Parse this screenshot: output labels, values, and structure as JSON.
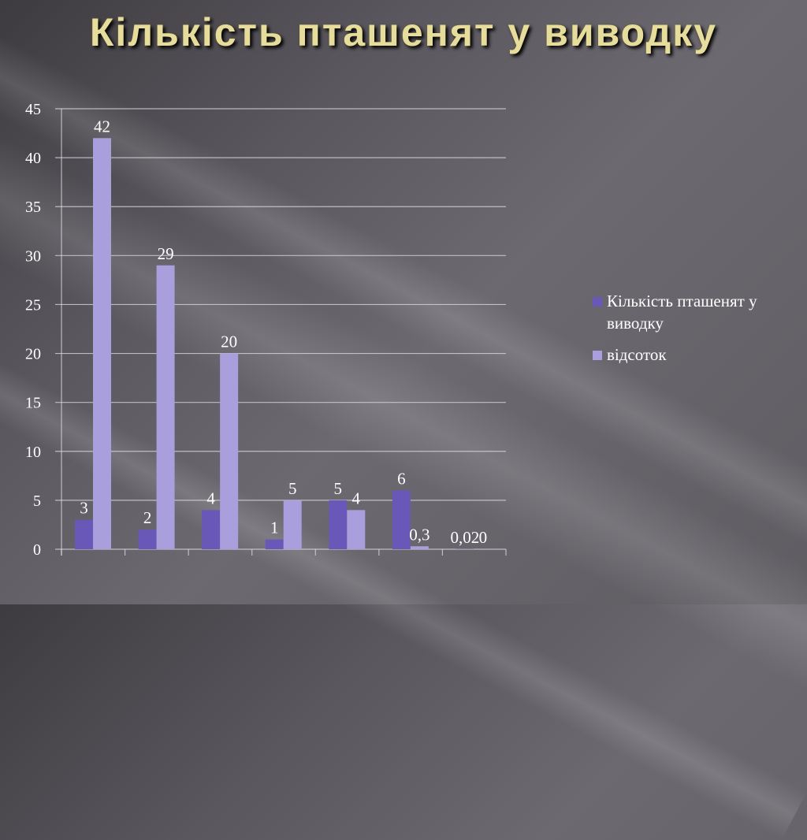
{
  "chart_data": {
    "type": "bar",
    "title": "Кількість пташенят у виводку",
    "categories": [
      "",
      "",
      "",
      "",
      "",
      "",
      ""
    ],
    "series": [
      {
        "name": "Кількість пташенят у виводку",
        "values": [
          3,
          2,
          4,
          1,
          5,
          6,
          0.02
        ],
        "labels": [
          "3",
          "2",
          "4",
          "1",
          "5",
          "6",
          "0,02"
        ],
        "color": "#6a58b8"
      },
      {
        "name": "відсоток",
        "values": [
          42,
          29,
          20,
          5,
          4,
          0.3,
          0
        ],
        "labels": [
          "42",
          "29",
          "20",
          "5",
          "4",
          "0,3",
          "0"
        ],
        "color": "#a99fdc"
      }
    ],
    "ylim": [
      0,
      45
    ],
    "yticks": [
      0,
      5,
      10,
      15,
      20,
      25,
      30,
      35,
      40,
      45
    ],
    "grid": true,
    "legend_position": "right",
    "xlabel": "",
    "ylabel": ""
  }
}
